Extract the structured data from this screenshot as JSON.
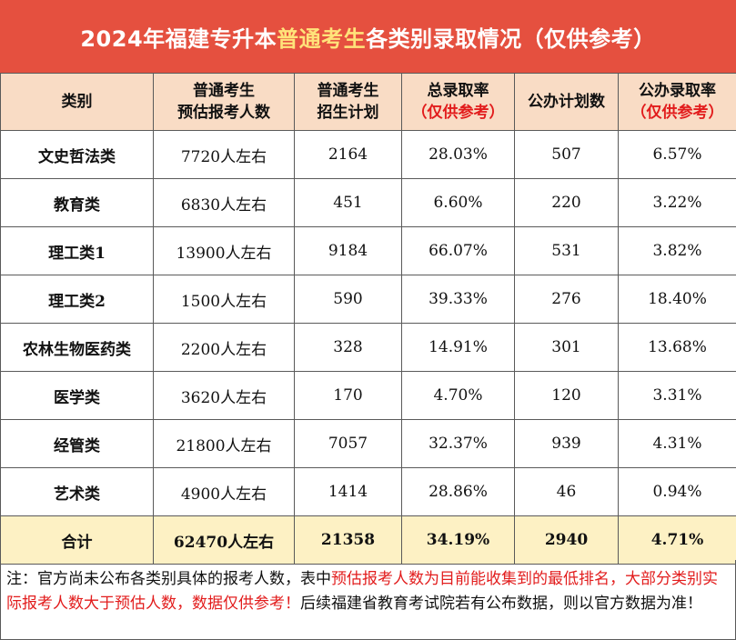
{
  "title": {
    "prefix": "2024年福建专升本",
    "highlight": "普通考生",
    "suffix": "各类别录取情况（仅供参考）"
  },
  "header": {
    "c0": "类别",
    "c1_line1": "普通考生",
    "c1_line2": "预估报考人数",
    "c2_line1": "普通考生",
    "c2_line2": "招生计划",
    "c3_line1": "总录取率",
    "c3_line2": "（仅供参考）",
    "c4": "公办计划数",
    "c5_line1": "公办录取率",
    "c5_line2": "（仅供参考）"
  },
  "rows": [
    {
      "category": "文史哲法类",
      "applicants": "7720人左右",
      "plan": "2164",
      "rate": "28.03%",
      "public_plan": "507",
      "public_rate": "6.57%"
    },
    {
      "category": "教育类",
      "applicants": "6830人左右",
      "plan": "451",
      "rate": "6.60%",
      "public_plan": "220",
      "public_rate": "3.22%"
    },
    {
      "category": "理工类1",
      "applicants": "13900人左右",
      "plan": "9184",
      "rate": "66.07%",
      "public_plan": "531",
      "public_rate": "3.82%"
    },
    {
      "category": "理工类2",
      "applicants": "1500人左右",
      "plan": "590",
      "rate": "39.33%",
      "public_plan": "276",
      "public_rate": "18.40%"
    },
    {
      "category": "农林生物医药类",
      "applicants": "2200人左右",
      "plan": "328",
      "rate": "14.91%",
      "public_plan": "301",
      "public_rate": "13.68%"
    },
    {
      "category": "医学类",
      "applicants": "3620人左右",
      "plan": "170",
      "rate": "4.70%",
      "public_plan": "120",
      "public_rate": "3.31%"
    },
    {
      "category": "经管类",
      "applicants": "21800人左右",
      "plan": "7057",
      "rate": "32.37%",
      "public_plan": "939",
      "public_rate": "4.31%"
    },
    {
      "category": "艺术类",
      "applicants": "4900人左右",
      "plan": "1414",
      "rate": "28.86%",
      "public_plan": "46",
      "public_rate": "0.94%"
    }
  ],
  "total": {
    "category": "合计",
    "applicants": "62470人左右",
    "plan": "21358",
    "rate": "34.19%",
    "public_plan": "2940",
    "public_rate": "4.71%"
  },
  "note": {
    "part1": "注：官方尚未公布各类别具体的报考人数，表中",
    "part2_red": "预估报考人数为目前能收集到的最低排名，大部分类别实际报考人数大于预估人数，数据仅供参考！",
    "part3": "后续福建省教育考试院若有公布数据，则以官方数据为准！"
  },
  "colors": {
    "title_bg": "#e5503f",
    "title_highlight": "#ffe37a",
    "header_bg": "#f9dcc5",
    "total_bg": "#fdf1c4",
    "accent_red": "#e21c1c"
  }
}
